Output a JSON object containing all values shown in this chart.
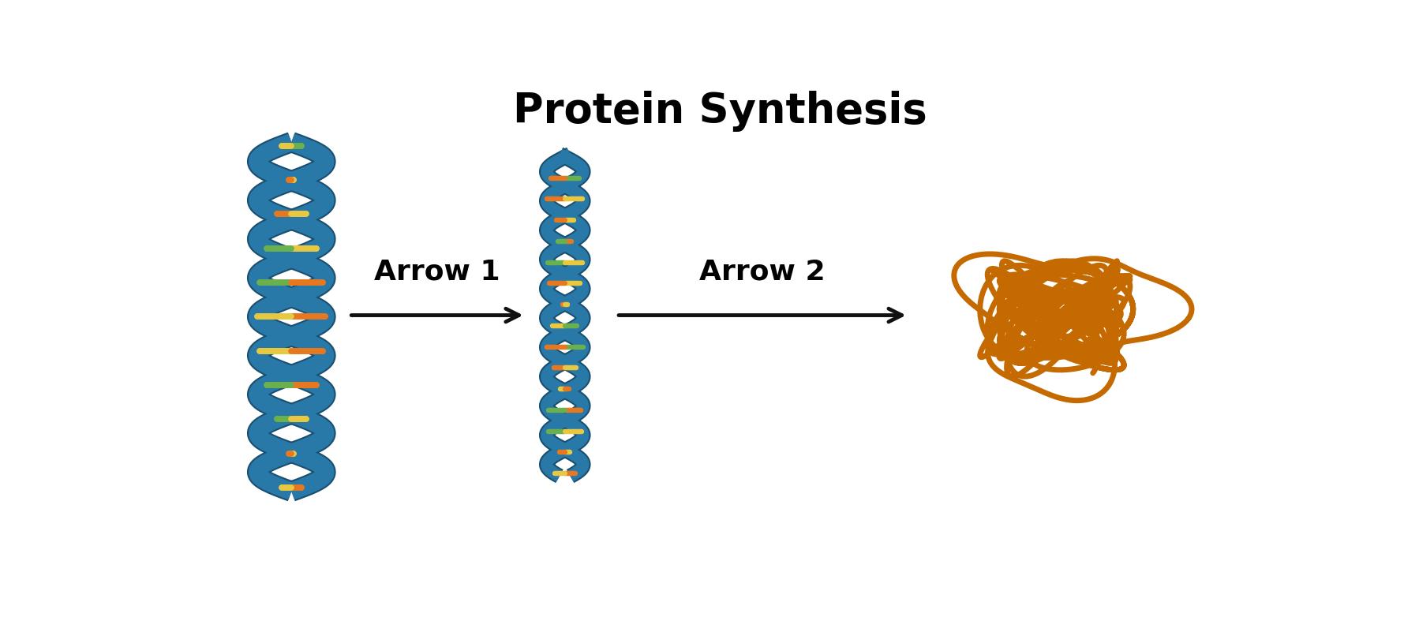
{
  "title": "Protein Synthesis",
  "title_fontsize": 38,
  "title_fontweight": "bold",
  "background_color": "#ffffff",
  "arrow1_label": "Arrow 1",
  "arrow2_label": "Arrow 2",
  "arrow_label_fontsize": 26,
  "arrow_label_fontweight": "bold",
  "dna_color": "#2878a8",
  "dna_outline": "#1a4f70",
  "rung_colors_a": [
    "#e87820",
    "#e8c840",
    "#6ab04c",
    "#e87820",
    "#e8c840",
    "#e87820",
    "#6ab04c",
    "#e8c840"
  ],
  "rung_colors_b": [
    "#e8c840",
    "#e87820",
    "#e8c840",
    "#6ab04c",
    "#e87820",
    "#e8c840",
    "#e87820",
    "#6ab04c"
  ],
  "protein_color": "#c46a00",
  "arrow_color": "#111111"
}
